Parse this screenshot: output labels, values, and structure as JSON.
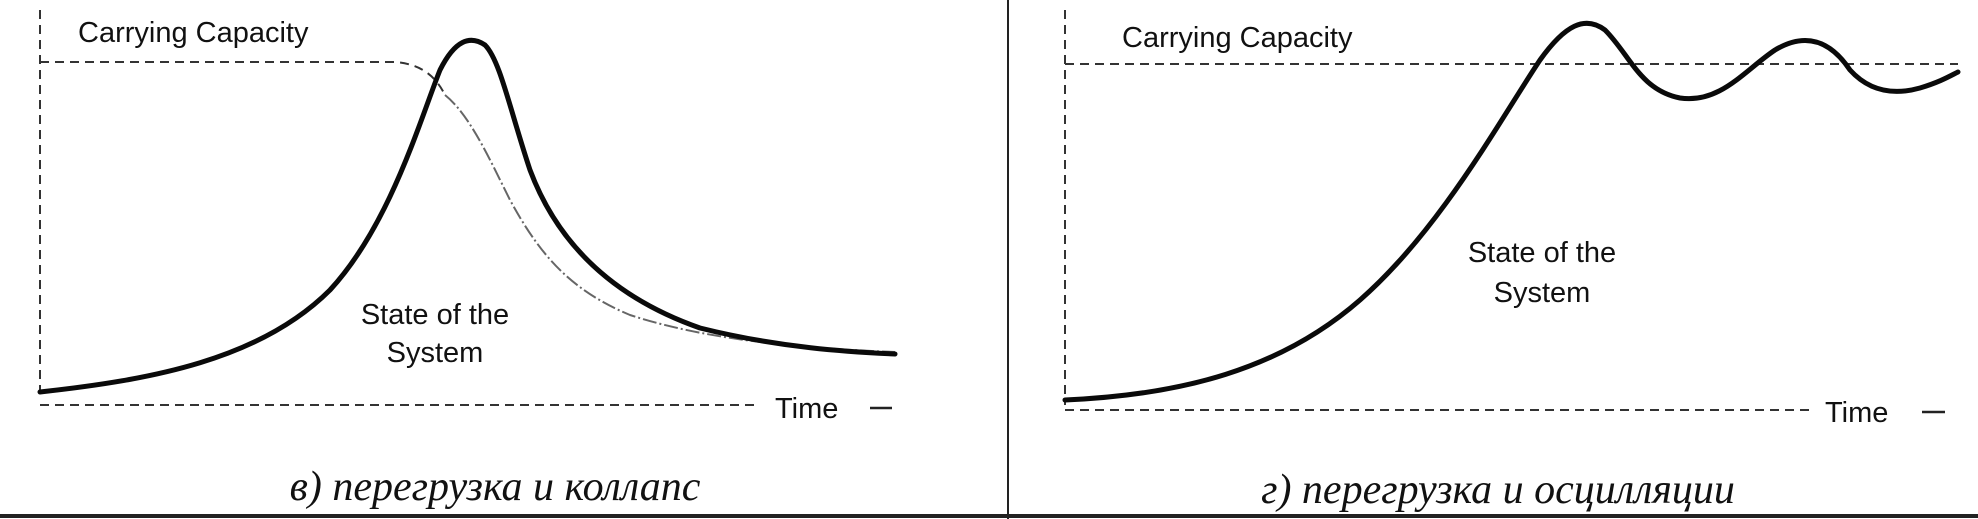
{
  "panels": [
    {
      "carrying_capacity_label": "Carrying Capacity",
      "state_label_line1": "State of the",
      "state_label_line2": "System",
      "time_label": "Time",
      "caption": "в) перегрузка и коллапс"
    },
    {
      "carrying_capacity_label": "Carrying Capacity",
      "state_label_line1": "State of the",
      "state_label_line2": "System",
      "time_label": "Time",
      "caption": "г) перегрузка и осцилляции"
    }
  ],
  "colors": {
    "ink": "#111111",
    "background": "#ffffff"
  }
}
